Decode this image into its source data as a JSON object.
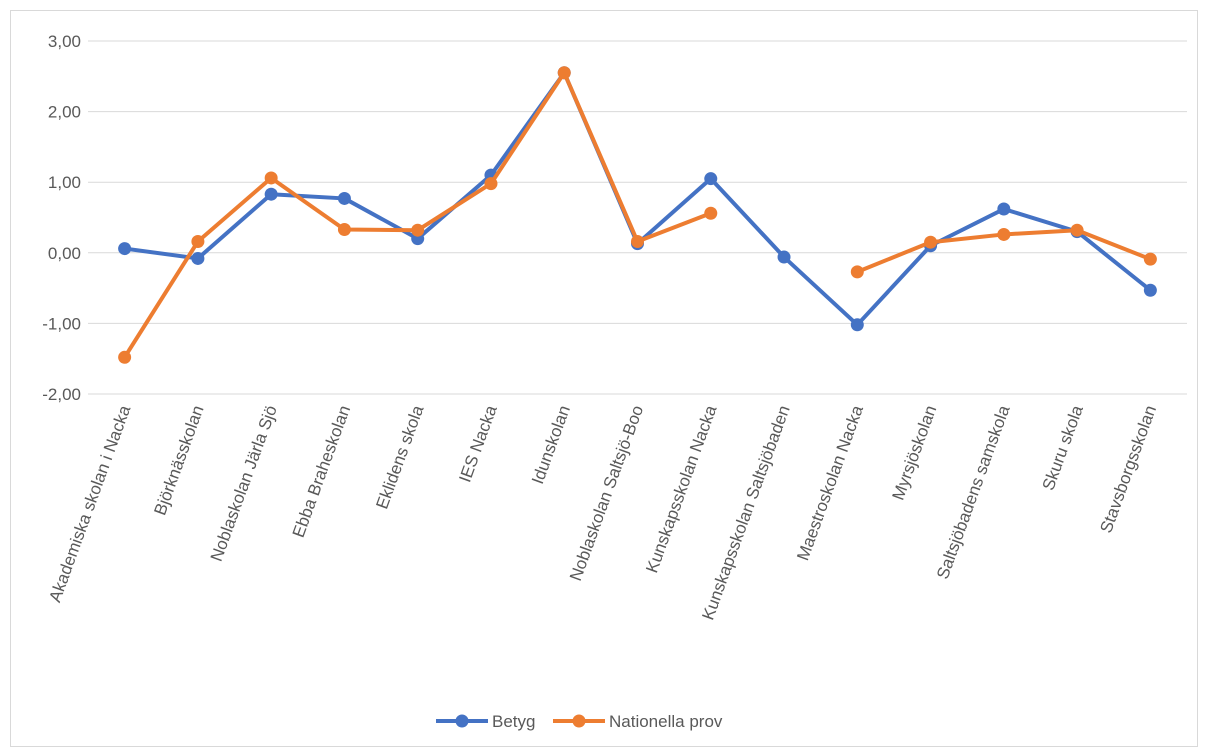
{
  "chart_data": {
    "type": "line",
    "title": "",
    "xlabel": "",
    "ylabel": "",
    "ylim": [
      -2,
      3
    ],
    "yticks": [
      "3,00",
      "2,00",
      "1,00",
      "0,00",
      "-1,00",
      "-2,00"
    ],
    "ytick_values": [
      3,
      2,
      1,
      0,
      -1,
      -2
    ],
    "grid": true,
    "legend": "bottom",
    "categories": [
      "Akademiska skolan i Nacka",
      "Björknässkolan",
      "Noblaskolan Järla Sjö",
      "Ebba Braheskolan",
      "Eklidens skola",
      "IES Nacka",
      "Idunskolan",
      "Noblaskolan Saltsjö-Boo",
      "Kunskapsskolan Nacka",
      "Kunskapsskolan Saltsjöbaden",
      "Maestroskolan Nacka",
      "Myrsjöskolan",
      "Saltsjöbadens samskola",
      "Skuru skola",
      "Stavsborgsskolan"
    ],
    "series": [
      {
        "name": "Betyg",
        "color": "#4472c4",
        "values": [
          0.06,
          -0.08,
          0.83,
          0.77,
          0.2,
          1.1,
          2.55,
          0.13,
          1.05,
          -0.06,
          -1.02,
          0.1,
          0.62,
          0.3,
          -0.53
        ]
      },
      {
        "name": "Nationella prov",
        "color": "#ed7d31",
        "values": [
          -1.48,
          0.16,
          1.06,
          0.33,
          0.32,
          0.98,
          2.55,
          0.16,
          0.56,
          null,
          -0.27,
          0.15,
          0.26,
          0.32,
          -0.09
        ]
      }
    ]
  }
}
